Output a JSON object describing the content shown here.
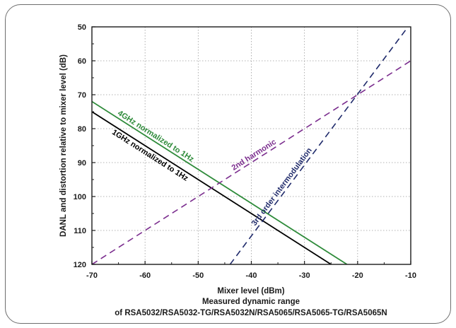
{
  "chart_data": {
    "type": "line",
    "xlabel": "Mixer level (dBm)",
    "ylabel": "DANL and distortion relative to mixer level (dB)",
    "subtitle": "Measured dynamic range",
    "caption": "of RSA5032/RSA5032-TG/RSA5032N/RSA5065/RSA5065-TG/RSA5065N",
    "xlim": [
      -70,
      -10
    ],
    "ylim": [
      50,
      120
    ],
    "y_inverted": true,
    "x_ticks": [
      -70,
      -60,
      -50,
      -40,
      -30,
      -20,
      -10
    ],
    "y_ticks": [
      50,
      60,
      70,
      80,
      90,
      100,
      110,
      120
    ],
    "grid": true,
    "series": [
      {
        "label": "4GHz normalized to 1Hz",
        "color": "#2e8b3a",
        "dash": "solid",
        "x": [
          -70,
          -22
        ],
        "y": [
          72,
          120
        ]
      },
      {
        "label": "1GHz normalized to 1Hz",
        "color": "#000000",
        "dash": "solid",
        "x": [
          -70,
          -25
        ],
        "y": [
          75,
          120
        ]
      },
      {
        "label": "2nd harmonic",
        "color": "#7b2d8e",
        "dash": "dashed",
        "x": [
          -70,
          -10
        ],
        "y": [
          120,
          60
        ]
      },
      {
        "label": "3rd order intermodulation",
        "color": "#1f2a6b",
        "dash": "dashed",
        "x": [
          -44,
          -11
        ],
        "y": [
          120,
          51
        ]
      }
    ]
  }
}
